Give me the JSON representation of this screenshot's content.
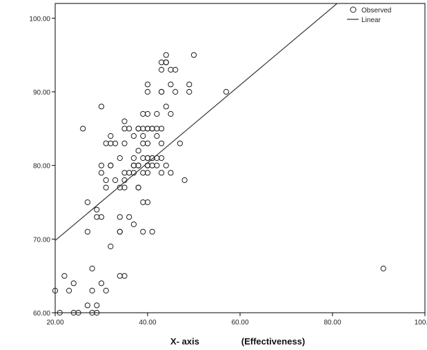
{
  "chart_data": {
    "type": "scatter",
    "title": "",
    "xlabel": "X- axis",
    "xlabel_suffix": "(Effectiveness)",
    "ylabel": "",
    "xlim": [
      20,
      100
    ],
    "ylim": [
      60,
      102
    ],
    "x_ticks": [
      20,
      40,
      60,
      80,
      100
    ],
    "x_tick_labels": [
      "20.00",
      "40.00",
      "60.00",
      "80.00",
      "100.00"
    ],
    "y_ticks": [
      60,
      70,
      80,
      90,
      100
    ],
    "y_tick_labels": [
      "60.00",
      "70.00",
      "80.00",
      "90.00",
      "100.00"
    ],
    "legend": {
      "position": "top-right",
      "entries": [
        {
          "name": "Observed",
          "marker": "circle"
        },
        {
          "name": "Linear",
          "marker": "line"
        }
      ]
    },
    "series": [
      {
        "name": "Observed",
        "kind": "points",
        "x": [
          20,
          21,
          22,
          23,
          24,
          24,
          25,
          26,
          27,
          27,
          27,
          28,
          28,
          28,
          29,
          29,
          29,
          29,
          30,
          30,
          30,
          30,
          30,
          31,
          31,
          31,
          31,
          32,
          32,
          32,
          32,
          32,
          33,
          33,
          34,
          34,
          34,
          34,
          34,
          34,
          35,
          35,
          35,
          35,
          35,
          35,
          35,
          36,
          36,
          36,
          37,
          37,
          37,
          37,
          37,
          37,
          38,
          38,
          38,
          38,
          38,
          38,
          38,
          39,
          39,
          39,
          39,
          39,
          39,
          39,
          39,
          40,
          40,
          40,
          40,
          40,
          40,
          40,
          40,
          40,
          40,
          40,
          40,
          40,
          41,
          41,
          41,
          41,
          41,
          41,
          42,
          42,
          42,
          42,
          42,
          43,
          43,
          43,
          43,
          43,
          43,
          43,
          43,
          44,
          44,
          44,
          44,
          44,
          45,
          45,
          45,
          45,
          46,
          46,
          47,
          48,
          49,
          49,
          50,
          57,
          91
        ],
        "y": [
          63,
          60,
          65,
          63,
          60,
          64,
          60,
          85,
          61,
          71,
          75,
          60,
          63,
          66,
          61,
          60,
          73,
          74,
          80,
          73,
          79,
          88,
          64,
          63,
          83,
          77,
          78,
          83,
          84,
          80,
          80,
          69,
          78,
          83,
          73,
          71,
          71,
          65,
          81,
          77,
          86,
          83,
          79,
          78,
          65,
          77,
          85,
          85,
          73,
          79,
          84,
          80,
          81,
          72,
          79,
          80,
          85,
          77,
          85,
          77,
          80,
          82,
          80,
          87,
          71,
          85,
          83,
          79,
          81,
          75,
          84,
          91,
          90,
          83,
          87,
          85,
          75,
          80,
          85,
          81,
          81,
          80,
          80,
          79,
          81,
          85,
          80,
          71,
          85,
          81,
          87,
          85,
          84,
          80,
          81,
          85,
          93,
          90,
          94,
          90,
          83,
          81,
          79,
          95,
          88,
          80,
          94,
          94,
          93,
          91,
          79,
          87,
          90,
          93,
          83,
          78,
          90,
          91,
          95,
          90,
          66
        ]
      },
      {
        "name": "Linear",
        "kind": "line",
        "x": [
          20,
          81
        ],
        "y": [
          69.8,
          102
        ]
      }
    ]
  },
  "colors": {
    "background": "#ffffff",
    "axis": "#000000",
    "marker_stroke": "#1a1a1a",
    "line": "#333333"
  }
}
